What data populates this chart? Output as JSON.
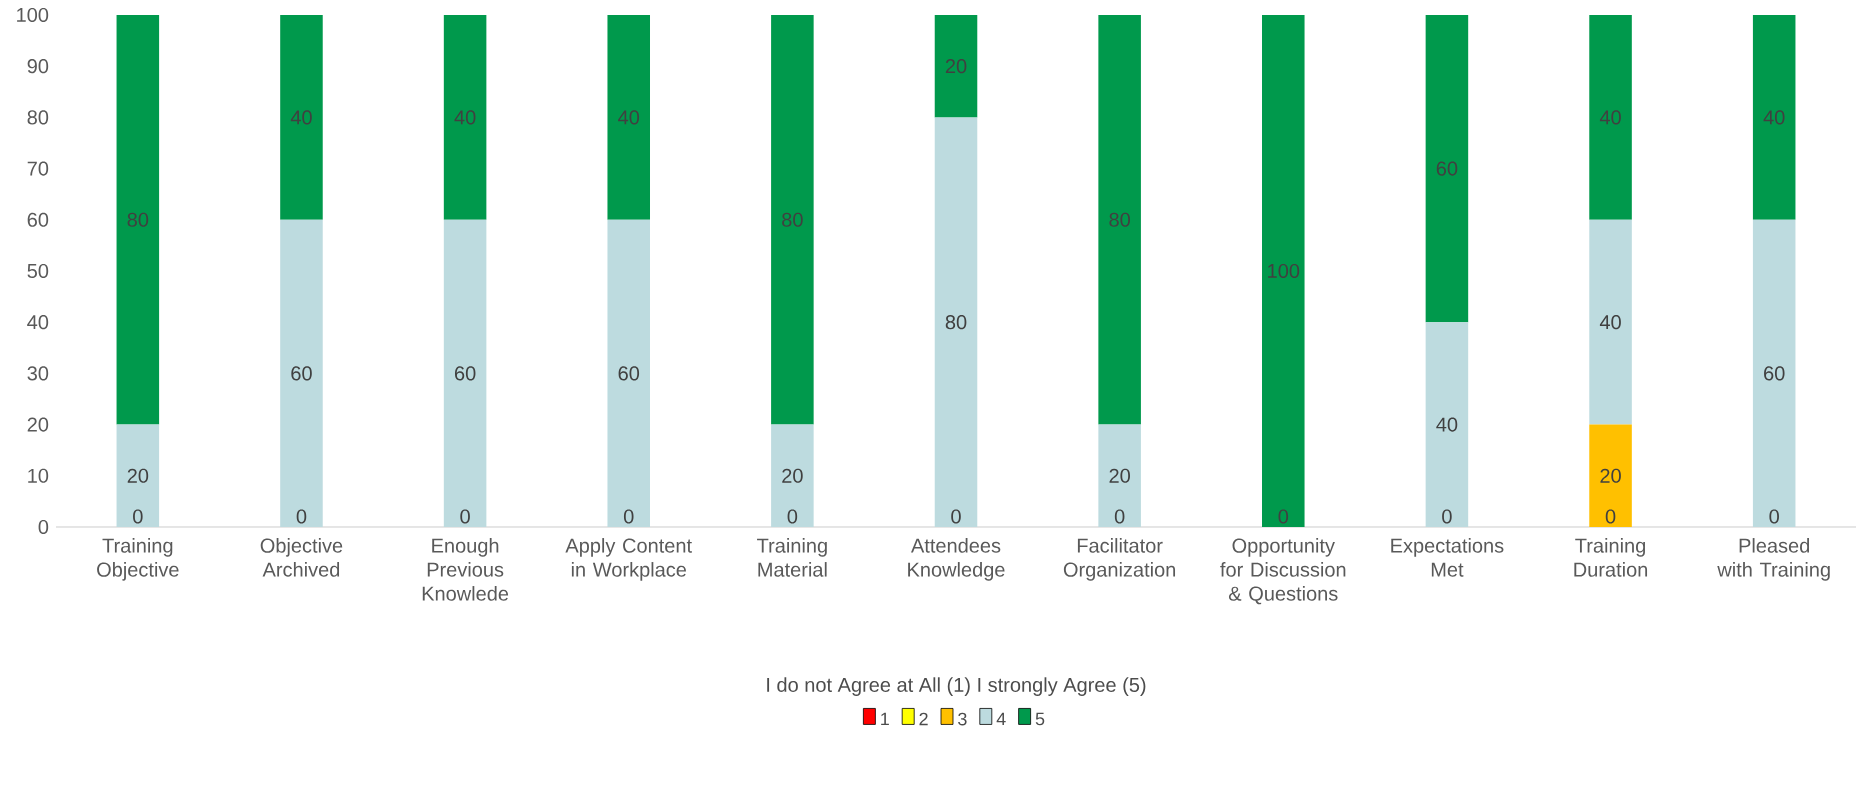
{
  "chart_data": {
    "type": "bar",
    "stacked": true,
    "legend_title": "I do not Agree at All (1)  I strongly Agree (5)",
    "categories": [
      "Training Objective",
      "Objective Archived",
      "Enough Previous Knowlede",
      "Apply Content in Workplace",
      "Training Material",
      "Attendees Knowledge",
      "Facilitator Organization",
      "Opportunity for Discussion & Questions",
      "Expectations Met",
      "Training Duration",
      "Pleased with Training"
    ],
    "series": [
      {
        "name": "1",
        "color": "#ff0000",
        "values": [
          0,
          0,
          0,
          0,
          0,
          0,
          0,
          0,
          0,
          0,
          0
        ],
        "value_labels": [
          null,
          null,
          null,
          null,
          null,
          null,
          null,
          null,
          null,
          null,
          null
        ]
      },
      {
        "name": "2",
        "color": "#ffff00",
        "values": [
          0,
          0,
          0,
          0,
          0,
          0,
          0,
          0,
          0,
          0,
          0
        ],
        "value_labels": [
          null,
          null,
          null,
          null,
          null,
          null,
          null,
          null,
          null,
          null,
          null
        ]
      },
      {
        "name": "3",
        "color": "#ffc000",
        "values": [
          0,
          0,
          0,
          0,
          0,
          0,
          0,
          0,
          0,
          20,
          0
        ],
        "value_labels": [
          null,
          null,
          null,
          null,
          null,
          null,
          null,
          null,
          null,
          "20",
          null
        ]
      },
      {
        "name": "4",
        "color": "#bddbdf",
        "values": [
          20,
          60,
          60,
          60,
          20,
          80,
          20,
          0,
          40,
          40,
          60
        ],
        "value_labels": [
          "20",
          "60",
          "60",
          "60",
          "20",
          "80",
          "20",
          null,
          "40",
          "40",
          "60"
        ]
      },
      {
        "name": "5",
        "color": "#00994c",
        "values": [
          80,
          40,
          40,
          40,
          80,
          20,
          80,
          100,
          60,
          40,
          40
        ],
        "value_labels": [
          "80",
          "40",
          "40",
          "40",
          "80",
          "20",
          "80",
          "100",
          "60",
          "40",
          "40"
        ]
      }
    ],
    "ylim": [
      0,
      100
    ],
    "yticks": [
      0,
      10,
      20,
      30,
      40,
      50,
      60,
      70,
      80,
      90,
      100
    ],
    "legend": "bottom",
    "grid": false,
    "annotations": [
      {
        "text": "0",
        "x": "Training Objective",
        "y": 0
      },
      {
        "text": "0",
        "x": "Objective Archived",
        "y": 0
      },
      {
        "text": "0",
        "x": "Enough Previous Knowlede",
        "y": 0
      },
      {
        "text": "0",
        "x": "Apply Content in Workplace",
        "y": 0
      },
      {
        "text": "0",
        "x": "Training Material",
        "y": 0
      },
      {
        "text": "0",
        "x": "Attendees Knowledge",
        "y": 0
      },
      {
        "text": "0",
        "x": "Facilitator Organization",
        "y": 0
      },
      {
        "text": "0",
        "x": "Opportunity for Discussion & Questions",
        "y": 0
      },
      {
        "text": "0",
        "x": "Expectations Met",
        "y": 0
      },
      {
        "text": "0",
        "x": "Training Duration",
        "y": 0
      },
      {
        "text": "0",
        "x": "Pleased with Training",
        "y": 0
      }
    ]
  }
}
